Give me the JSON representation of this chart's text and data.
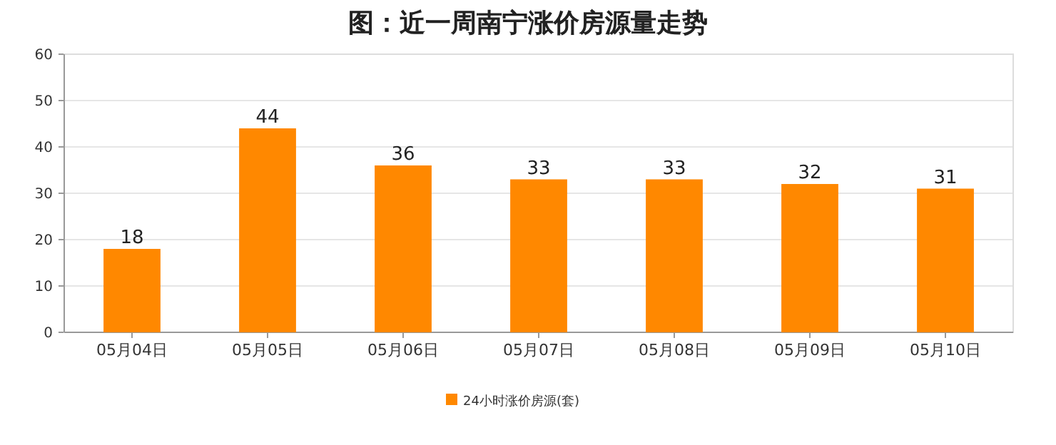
{
  "chart_data": {
    "type": "bar",
    "title": "图：近一周南宁涨价房源量走势",
    "categories": [
      "05月04日",
      "05月05日",
      "05月06日",
      "05月07日",
      "05月08日",
      "05月09日",
      "05月10日"
    ],
    "series": [
      {
        "name": "24小时涨价房源(套)",
        "color": "#ff8800",
        "values": [
          18,
          44,
          36,
          33,
          33,
          32,
          31
        ]
      }
    ],
    "ylim": [
      0,
      60
    ],
    "yticks": [
      0,
      10,
      20,
      30,
      40,
      50,
      60
    ],
    "grid": "y",
    "data_labels": true,
    "legend": "bottom"
  }
}
